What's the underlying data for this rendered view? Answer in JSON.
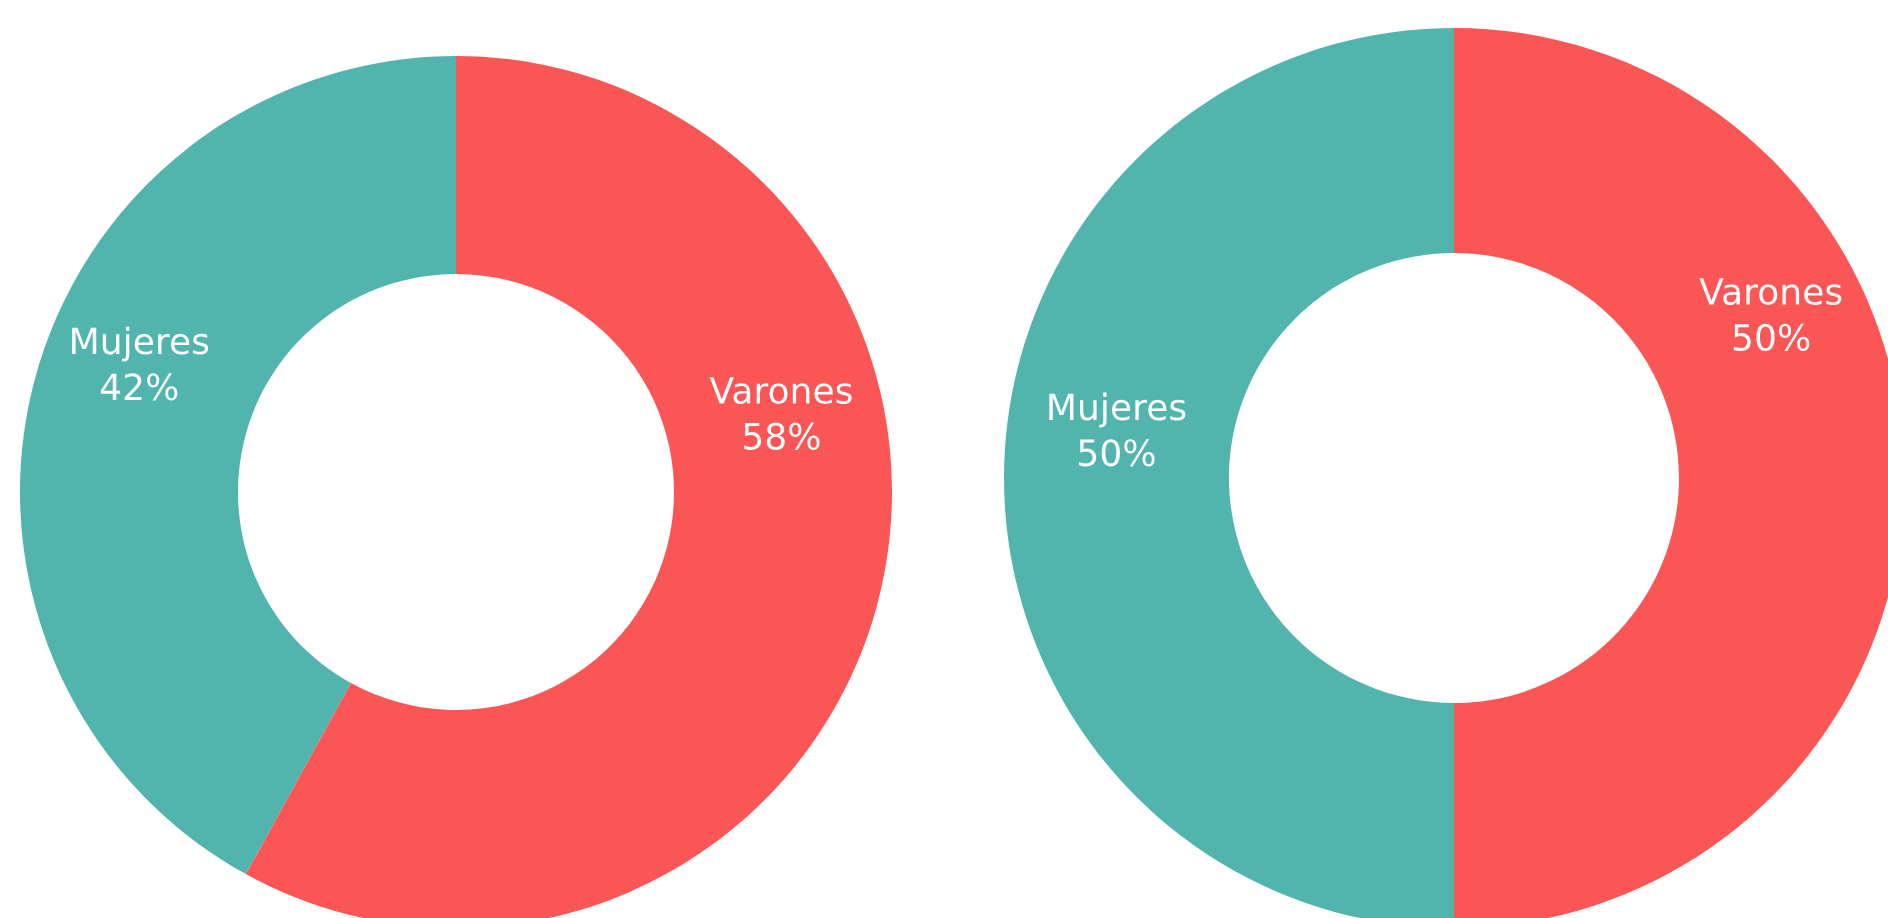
{
  "chart_data": [
    {
      "type": "donut",
      "categories": [
        "Mujeres",
        "Varones"
      ],
      "values": [
        42,
        58
      ],
      "colors": [
        "#52b5ad",
        "#fb5656"
      ],
      "value_labels": [
        "42%",
        "58%"
      ]
    },
    {
      "type": "donut",
      "categories": [
        "Mujeres",
        "Varones"
      ],
      "values": [
        50,
        50
      ],
      "colors": [
        "#52b5ad",
        "#fb5656"
      ],
      "value_labels": [
        "50%",
        "50%"
      ]
    }
  ]
}
